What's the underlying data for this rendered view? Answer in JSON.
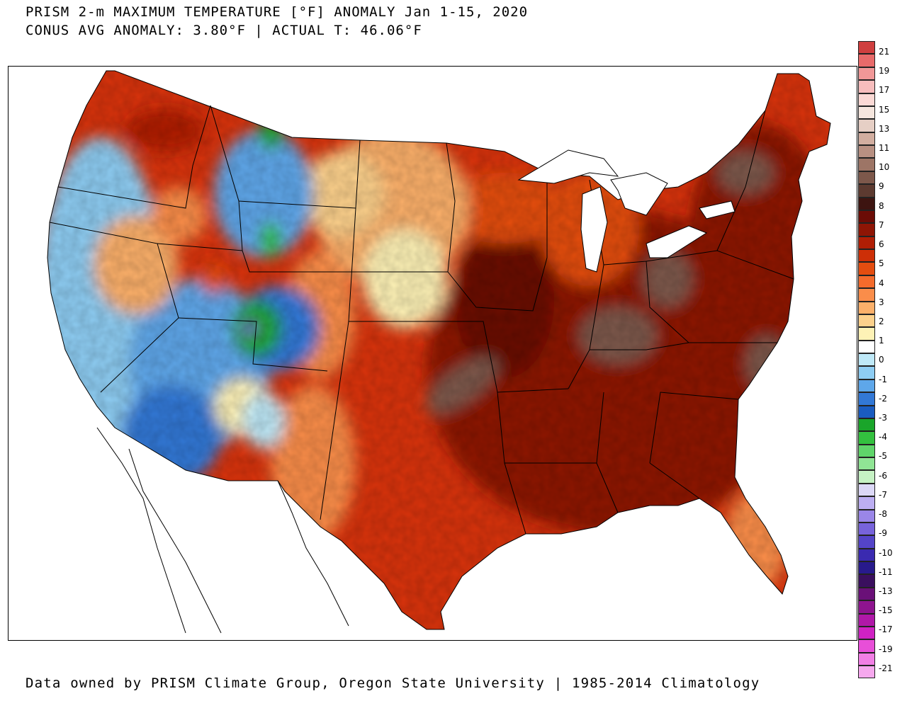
{
  "title": {
    "line1": "PRISM 2-m MAXIMUM TEMPERATURE [°F] ANOMALY Jan 1-15, 2020",
    "line2": "CONUS AVG ANOMALY: 3.80°F | ACTUAL T: 46.06°F"
  },
  "credit": "Data owned by PRISM Climate Group, Oregon State University | 1985-2014 Climatology",
  "colorbar": {
    "colors": [
      "#cf3f3f",
      "#e86a6a",
      "#f19898",
      "#f7bdbd",
      "#fbd9d5",
      "#f5e6de",
      "#e6cfc5",
      "#d2aea0",
      "#b89082",
      "#9d7566",
      "#7d584b",
      "#5c3a30",
      "#3d1410",
      "#6b0c06",
      "#8e1505",
      "#b01e05",
      "#cd2f07",
      "#e44d10",
      "#f46b2c",
      "#fa8d4a",
      "#fcb06a",
      "#fdd18c",
      "#fef2b6",
      "#ffffff",
      "#bfe9f8",
      "#8ecdf3",
      "#5ea7ea",
      "#3278d6",
      "#1a5cc0",
      "#1aa52a",
      "#33c13f",
      "#5fd56a",
      "#90e595",
      "#c6f2c4",
      "#dcd8f7",
      "#bcaef2",
      "#9a86e8",
      "#7763db",
      "#5444c8",
      "#3a2ab0",
      "#281a8c",
      "#3a0f5e",
      "#6a1078",
      "#8e148f",
      "#b018a8",
      "#cf22c3",
      "#e84fd8",
      "#f27fe5",
      "#f6a8ee"
    ],
    "tick_labels": [
      "21",
      "19",
      "17",
      "15",
      "13",
      "11",
      "10",
      "9",
      "8",
      "7",
      "6",
      "5",
      "4",
      "3",
      "2",
      "1",
      "0",
      "-1",
      "-2",
      "-3",
      "-4",
      "-5",
      "-6",
      "-7",
      "-8",
      "-9",
      "-10",
      "-11",
      "-13",
      "-15",
      "-17",
      "-19",
      "-21"
    ]
  }
}
